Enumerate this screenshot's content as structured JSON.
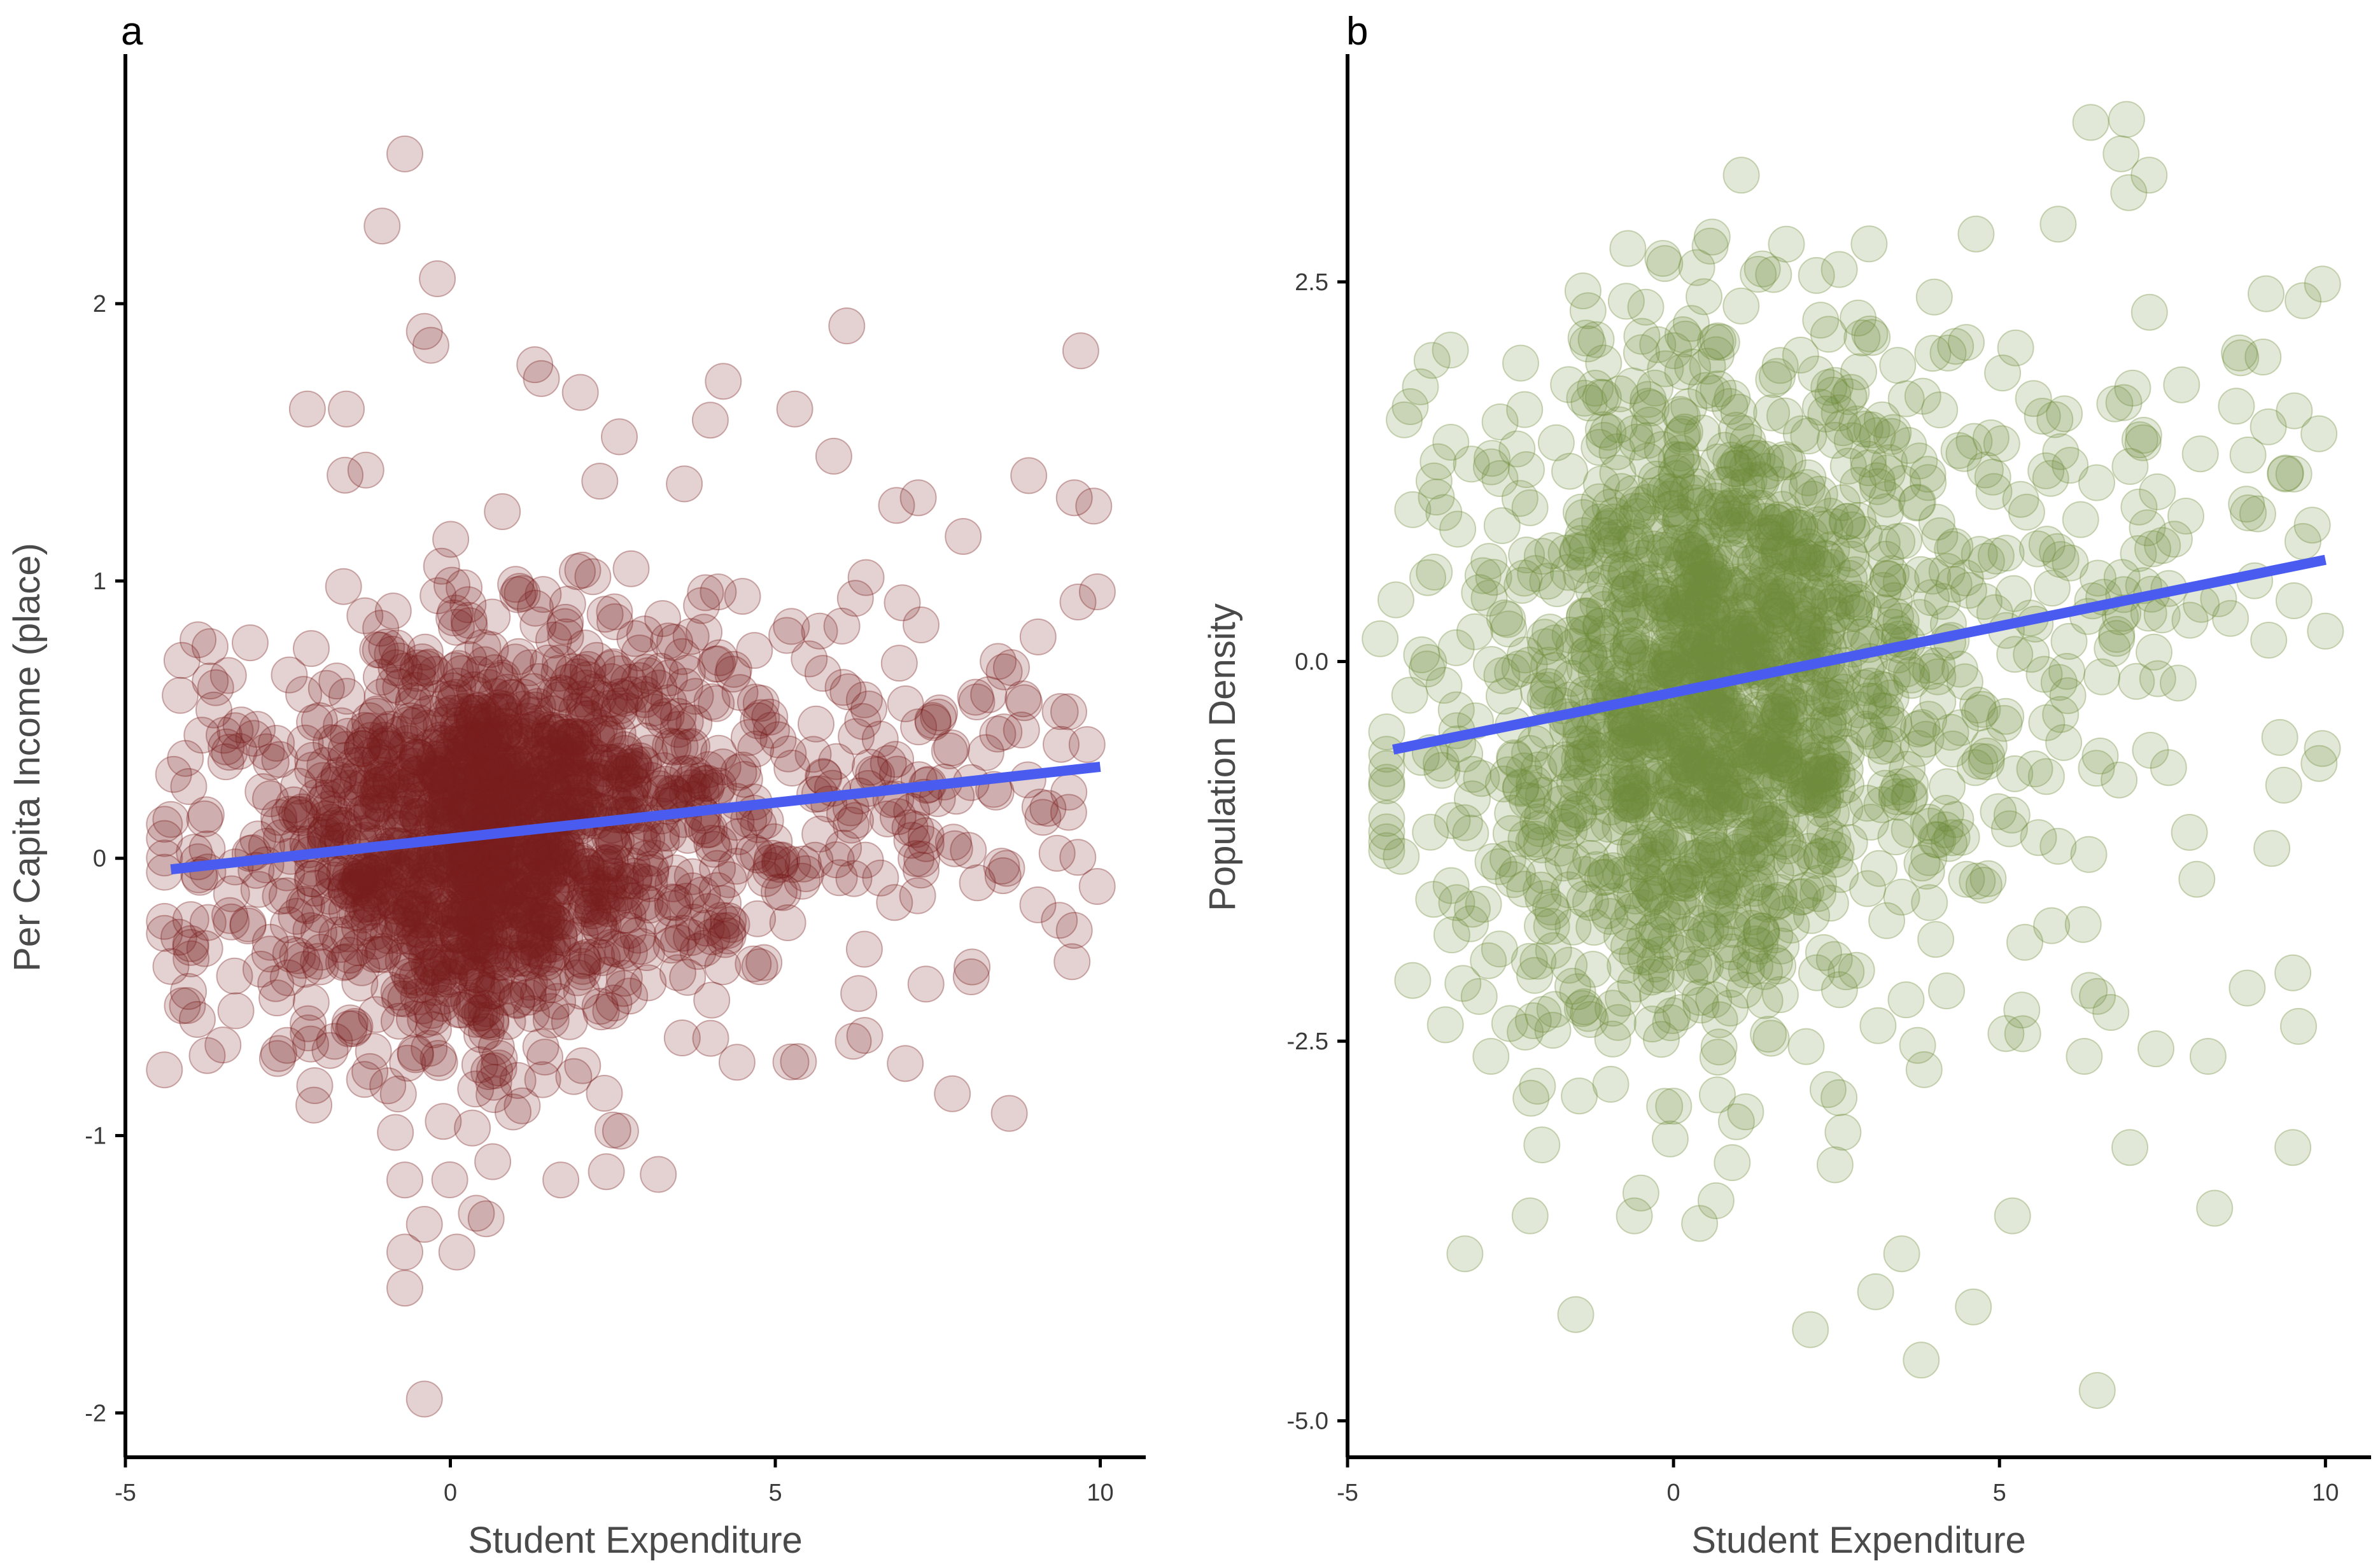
{
  "colors": {
    "panel_a_points": "#7a1d1d",
    "panel_b_points": "#6f8c3a",
    "fit_line": "#4a5cf0",
    "axis": "#000000"
  },
  "chart_data": [
    {
      "panel": "a",
      "type": "scatter",
      "title": "",
      "xlabel": "Student Expenditure",
      "ylabel": "Per Capita Income (place)",
      "xlim": [
        -5,
        10.7
      ],
      "ylim": [
        -2.16,
        2.9
      ],
      "x_ticks": [
        -5,
        0,
        5,
        10
      ],
      "x_tick_labels": [
        "-5",
        "0",
        "5",
        "10"
      ],
      "y_ticks": [
        -2,
        -1,
        0,
        1,
        2
      ],
      "y_tick_labels": [
        "-2",
        "-1",
        "0",
        "1",
        "2"
      ],
      "point_opacity": 0.2,
      "fit_line": {
        "x": [
          -4.3,
          10.0
        ],
        "y": [
          -0.04,
          0.33
        ]
      },
      "outliers": [
        [
          -0.7,
          2.54
        ],
        [
          -1.05,
          2.28
        ],
        [
          -0.2,
          2.09
        ],
        [
          -0.4,
          1.9
        ],
        [
          -0.3,
          1.85
        ],
        [
          1.3,
          1.78
        ],
        [
          1.4,
          1.73
        ],
        [
          -2.2,
          1.62
        ],
        [
          -1.6,
          1.62
        ],
        [
          -1.3,
          1.4
        ],
        [
          2.0,
          1.68
        ],
        [
          2.6,
          1.52
        ],
        [
          4.2,
          1.72
        ],
        [
          5.3,
          1.62
        ],
        [
          6.1,
          1.92
        ],
        [
          9.7,
          1.83
        ],
        [
          4.0,
          1.58
        ],
        [
          5.9,
          1.45
        ],
        [
          8.9,
          1.38
        ],
        [
          9.6,
          1.3
        ],
        [
          9.9,
          1.27
        ],
        [
          0.8,
          1.25
        ],
        [
          2.3,
          1.36
        ],
        [
          3.6,
          1.35
        ],
        [
          7.2,
          1.3
        ],
        [
          -0.4,
          -1.32
        ],
        [
          -0.7,
          -1.42
        ],
        [
          -0.7,
          -1.55
        ],
        [
          0.1,
          -1.42
        ],
        [
          0.4,
          -1.28
        ],
        [
          0.55,
          -1.3
        ],
        [
          1.7,
          -1.16
        ],
        [
          2.4,
          -1.13
        ],
        [
          3.2,
          -1.14
        ],
        [
          -0.7,
          -1.16
        ],
        [
          -0.4,
          -1.95
        ],
        [
          8.6,
          -0.92
        ],
        [
          7.0,
          -0.74
        ],
        [
          6.2,
          -0.66
        ],
        [
          2.5,
          -0.98
        ],
        [
          -0.8,
          -0.85
        ],
        [
          -2.1,
          -0.89
        ],
        [
          -4.3,
          -0.39
        ],
        [
          -3.3,
          -0.55
        ],
        [
          9.6,
          -0.26
        ]
      ]
    },
    {
      "panel": "b",
      "type": "scatter",
      "title": "",
      "xlabel": "Student Expenditure",
      "ylabel": "Population Density",
      "xlim": [
        -5,
        10.7
      ],
      "ylim": [
        -5.24,
        4.0
      ],
      "x_ticks": [
        -5,
        0,
        5,
        10
      ],
      "x_tick_labels": [
        "-5",
        "0",
        "5",
        "10"
      ],
      "y_ticks": [
        -5.0,
        -2.5,
        0.0,
        2.5
      ],
      "y_tick_labels": [
        "-5.0",
        "-2.5",
        "0.0",
        "2.5"
      ],
      "point_opacity": 0.2,
      "fit_line": {
        "x": [
          -4.3,
          10.0
        ],
        "y": [
          -0.58,
          0.67
        ]
      },
      "outliers": [
        [
          6.4,
          3.55
        ],
        [
          6.95,
          3.57
        ],
        [
          5.9,
          2.88
        ],
        [
          -0.7,
          2.72
        ],
        [
          3.0,
          2.75
        ],
        [
          -4.5,
          0.15
        ],
        [
          -4.0,
          1.0
        ],
        [
          -3.1,
          1.3
        ],
        [
          -4.0,
          -2.1
        ],
        [
          -3.2,
          -3.9
        ],
        [
          -2.2,
          -3.65
        ],
        [
          -1.5,
          -4.3
        ],
        [
          -0.6,
          -3.65
        ],
        [
          -0.5,
          -3.5
        ],
        [
          0.4,
          -3.7
        ],
        [
          2.1,
          -4.4
        ],
        [
          3.1,
          -4.15
        ],
        [
          3.5,
          -3.9
        ],
        [
          3.8,
          -4.6
        ],
        [
          4.6,
          -4.25
        ],
        [
          5.2,
          -3.65
        ],
        [
          6.5,
          -4.8
        ],
        [
          8.3,
          -3.6
        ],
        [
          9.5,
          -3.2
        ],
        [
          7.0,
          -3.2
        ],
        [
          9.5,
          -2.05
        ],
        [
          8.2,
          -2.6
        ],
        [
          6.3,
          -2.6
        ],
        [
          5.1,
          -2.45
        ],
        [
          2.6,
          -3.1
        ],
        [
          -1.6,
          -2.0
        ],
        [
          -2.8,
          -2.6
        ],
        [
          7.4,
          -2.55
        ],
        [
          8.8,
          -2.15
        ],
        [
          9.3,
          -0.5
        ],
        [
          10.0,
          0.2
        ],
        [
          9.9,
          1.5
        ],
        [
          8.7,
          2.0
        ],
        [
          7.3,
          2.3
        ],
        [
          4.0,
          2.4
        ],
        [
          1.3,
          2.55
        ],
        [
          -1.2,
          1.8
        ],
        [
          -2.4,
          1.4
        ],
        [
          -3.4,
          -1.8
        ],
        [
          0.9,
          -3.3
        ]
      ]
    }
  ]
}
